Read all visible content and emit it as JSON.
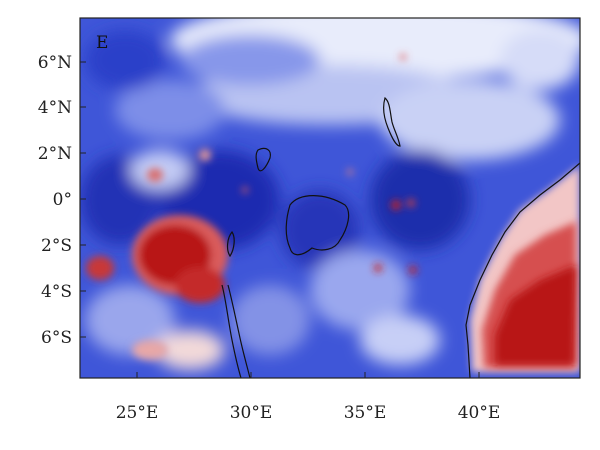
{
  "panel_label": "E",
  "x_ticks": [
    "25°E",
    "30°E",
    "35°E",
    "40°E"
  ],
  "y_ticks": [
    "6°N",
    "4°N",
    "2°N",
    "0°",
    "2°S",
    "4°S",
    "6°S"
  ],
  "extent": {
    "lon": [
      22.8,
      44.6
    ],
    "lat": [
      -7.8,
      7.6
    ]
  },
  "colormap": {
    "negative": "#1a1aa6",
    "mid": "#ffffff",
    "positive": "#a00000"
  }
}
